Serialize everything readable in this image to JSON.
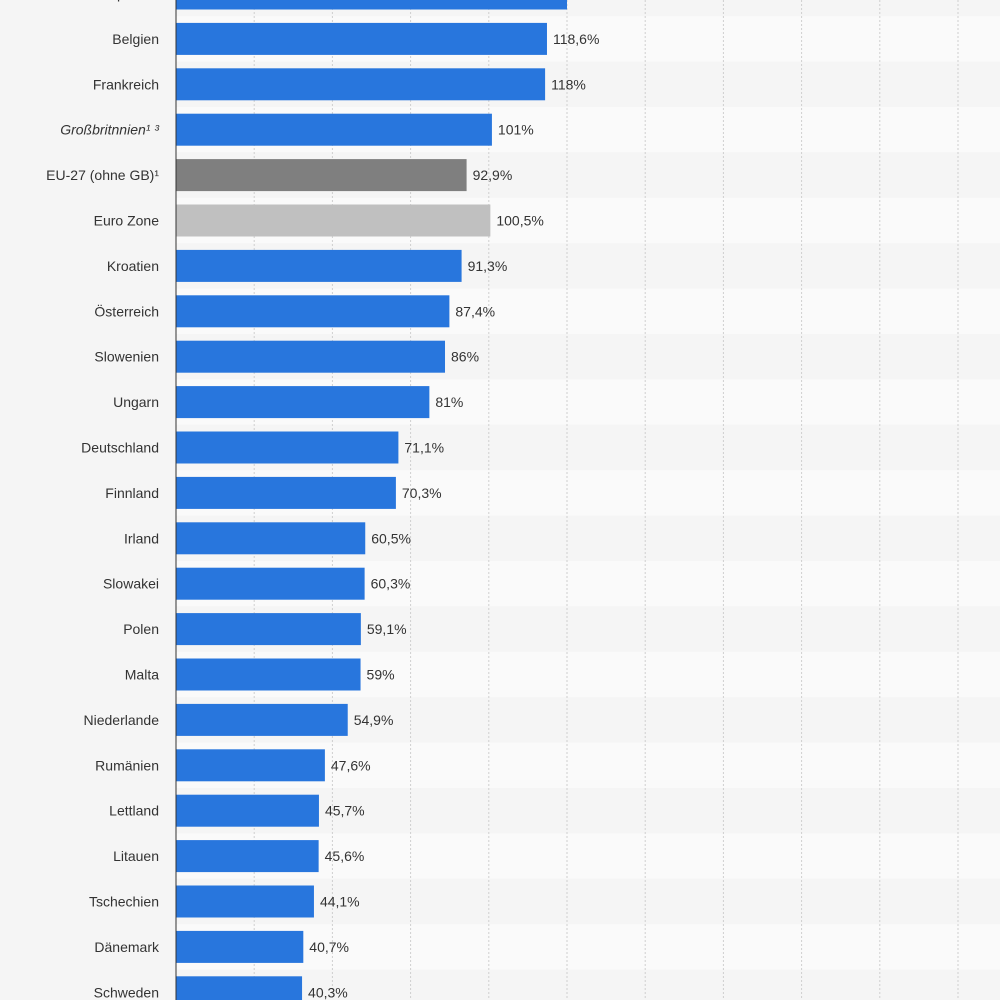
{
  "chart_data": {
    "type": "bar",
    "orientation": "horizontal",
    "xlim": [
      0,
      250
    ],
    "grid": true,
    "value_suffix": "%",
    "categories": [
      "Spanien",
      "Belgien",
      "Frankreich",
      "Großbritnnien¹ ³",
      "EU-27 (ohne GB)¹",
      "Euro Zone",
      "Kroatien",
      "Österreich",
      "Slowenien",
      "Ungarn",
      "Deutschland",
      "Finnland",
      "Irland",
      "Slowakei",
      "Polen",
      "Malta",
      "Niederlande",
      "Rumänien",
      "Lettland",
      "Litauen",
      "Tschechien",
      "Dänemark",
      "Schweden"
    ],
    "value_labels": [
      "",
      "118,6%",
      "118%",
      "101%",
      "92,9%",
      "100,5%",
      "91,3%",
      "87,4%",
      "86%",
      "81%",
      "71,1%",
      "70,3%",
      "60,5%",
      "60,3%",
      "59,1%",
      "59%",
      "54,9%",
      "47,6%",
      "45,7%",
      "45,6%",
      "44,1%",
      "40,7%",
      "40,3%"
    ],
    "values": [
      125,
      118.6,
      118,
      101,
      92.9,
      100.5,
      91.3,
      87.4,
      86,
      81,
      71.1,
      70.3,
      60.5,
      60.3,
      59.1,
      59,
      54.9,
      47.6,
      45.7,
      45.6,
      44.1,
      40.7,
      40.3
    ],
    "italic_categories": [
      "Großbritnnien¹ ³"
    ],
    "series_colors": {
      "default": "#2876dd",
      "EU-27 (ohne GB)¹": "#7f7f7f",
      "Euro Zone": "#c0c0c0"
    },
    "background_color": "#f5f5f5",
    "row_band_colors": [
      "#f5f5f5",
      "#fafafa"
    ]
  }
}
